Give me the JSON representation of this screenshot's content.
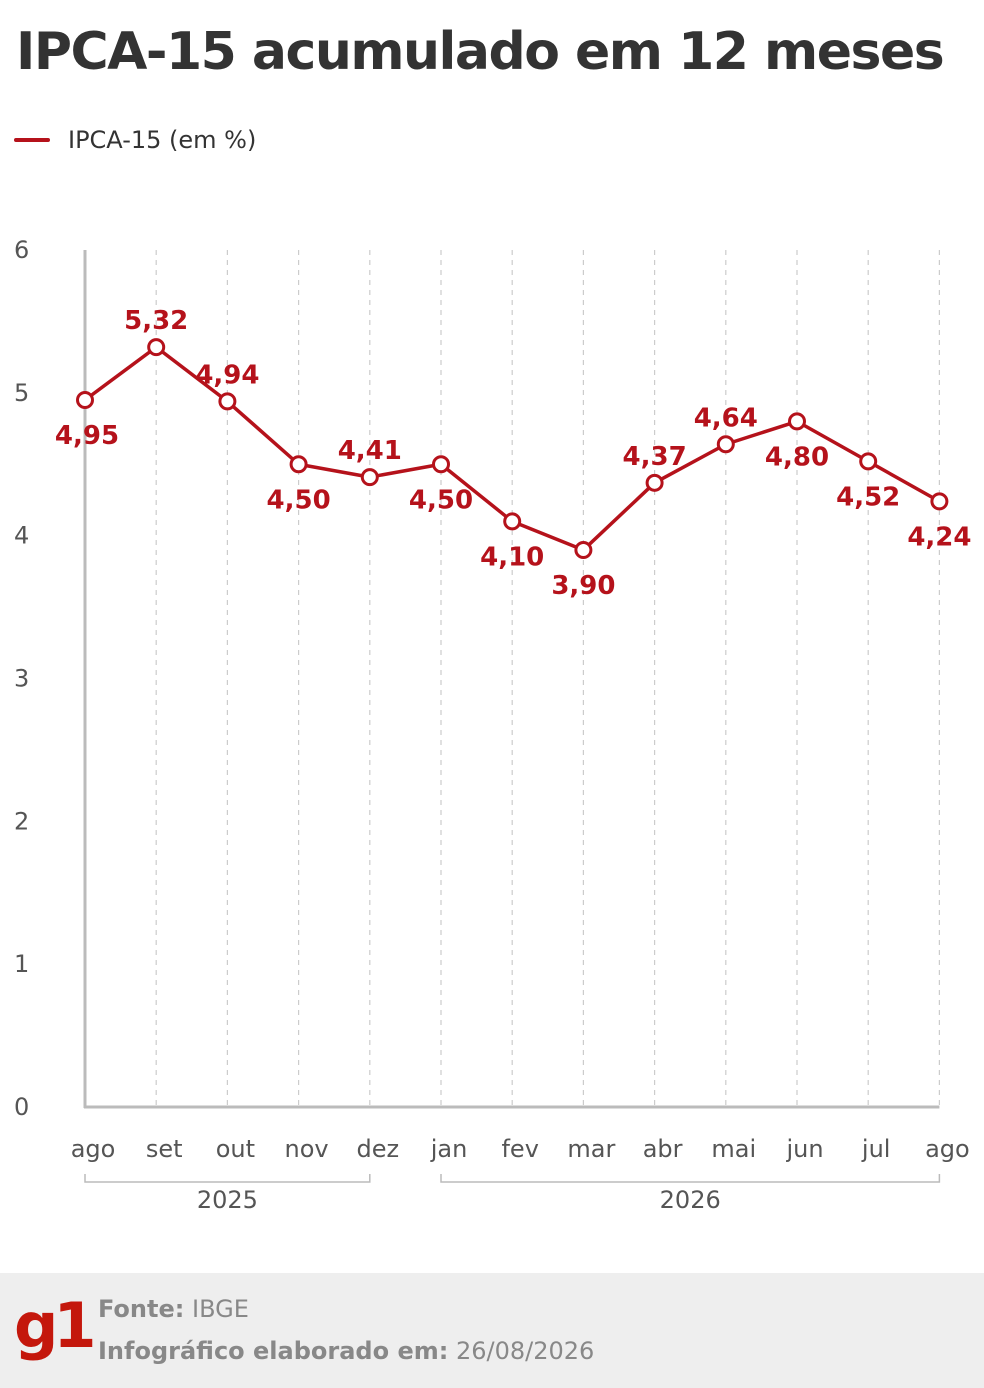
{
  "header": {
    "title": "IPCA-15 acumulado em 12 meses",
    "legend_label": "IPCA-15 (em %)"
  },
  "colors": {
    "series": "#b5121b",
    "axis_text": "#555555",
    "grid": "#cccccc",
    "axis": "#bbbbbb",
    "logo": "#c4170c"
  },
  "chart_data": {
    "type": "line",
    "categories": [
      "ago",
      "set",
      "out",
      "nov",
      "dez",
      "jan",
      "fev",
      "mar",
      "abr",
      "mai",
      "jun",
      "jul",
      "ago"
    ],
    "series": [
      {
        "name": "IPCA-15 (em %)",
        "values": [
          4.95,
          5.32,
          4.94,
          4.5,
          4.41,
          4.5,
          4.1,
          3.9,
          4.37,
          4.64,
          4.8,
          4.52,
          4.24
        ],
        "labels": [
          "4,95",
          "5,32",
          "4,94",
          "4,50",
          "4,41",
          "4,50",
          "4,10",
          "3,90",
          "4,37",
          "4,64",
          "4,80",
          "4,52",
          "4,24"
        ],
        "label_positions": [
          "below",
          "above",
          "above",
          "below",
          "above",
          "below",
          "below",
          "below",
          "above",
          "above",
          "below",
          "below",
          "below"
        ]
      }
    ],
    "year_groups": [
      {
        "label": "2025",
        "from": 0,
        "to": 4
      },
      {
        "label": "2026",
        "from": 5,
        "to": 12
      }
    ],
    "yticks": [
      0,
      1,
      2,
      3,
      4,
      5,
      6
    ],
    "ylim": [
      0,
      6
    ],
    "grid": "vertical-dashed",
    "legend_position": "top-left"
  },
  "footer": {
    "logo_text": "g1",
    "source_label": "Fonte:",
    "source_value": "IBGE",
    "date_label": "Infográfico elaborado em:",
    "date_value": "26/08/2026"
  }
}
